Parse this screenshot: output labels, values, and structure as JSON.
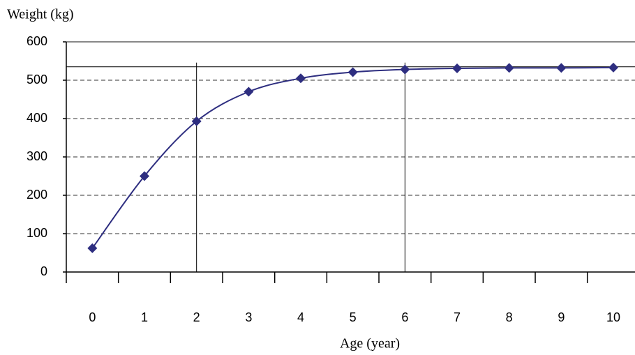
{
  "chart_data": {
    "type": "line",
    "ylabel": "Weight (kg)",
    "xlabel": "Age (year)",
    "categories": [
      "0",
      "1",
      "2",
      "3",
      "4",
      "5",
      "6",
      "7",
      "8",
      "9",
      "10"
    ],
    "series": [
      {
        "name": "Weight",
        "color": "#2e2e80",
        "values": [
          62,
          250,
          393,
          470,
          505,
          521,
          528,
          531,
          532,
          532,
          533
        ]
      }
    ],
    "ylim": [
      0,
      600
    ],
    "yticks": [
      0,
      100,
      200,
      300,
      400,
      500,
      600
    ],
    "grid": true,
    "reference_lines": {
      "y": 535,
      "x": [
        2,
        6
      ]
    }
  }
}
